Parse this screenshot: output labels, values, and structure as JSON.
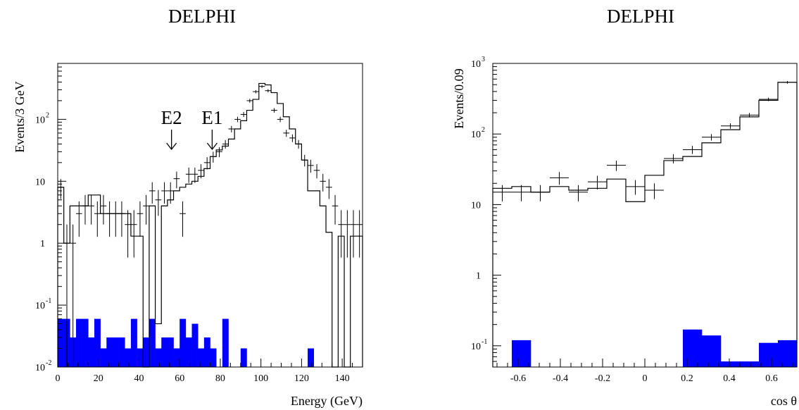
{
  "chart_data": [
    {
      "type": "histogram",
      "title": "DELPHI",
      "xlabel": "Energy (GeV)",
      "ylabel": "Events/3 GeV",
      "yscale": "log",
      "xlim": [
        0,
        150
      ],
      "ylim": [
        0.01,
        800
      ],
      "x_ticks": [
        "0",
        "20",
        "40",
        "60",
        "80",
        "100",
        "120",
        "140"
      ],
      "y_ticks": [
        {
          "value": 0.01,
          "label": "10",
          "exp": "-2"
        },
        {
          "value": 0.1,
          "label": "10",
          "exp": "-1"
        },
        {
          "value": 1,
          "label": "1",
          "exp": ""
        },
        {
          "value": 10,
          "label": "10",
          "exp": ""
        },
        {
          "value": 100,
          "label": "10",
          "exp": "2"
        }
      ],
      "bin_edges": [
        0,
        3,
        6,
        9,
        12,
        15,
        18,
        21,
        24,
        27,
        30,
        33,
        36,
        39,
        42,
        45,
        48,
        51,
        54,
        57,
        60,
        63,
        66,
        69,
        72,
        75,
        78,
        81,
        84,
        87,
        90,
        93,
        96,
        99,
        102,
        105,
        108,
        111,
        114,
        117,
        120,
        123,
        126,
        129,
        132,
        135,
        138,
        141,
        144,
        147,
        150
      ],
      "series": [
        {
          "role": "simulation-histogram",
          "values": [
            8,
            1,
            4,
            4,
            4,
            6,
            6,
            3,
            3,
            3,
            3,
            3,
            1.3,
            1.3,
            0.01,
            4,
            0.05,
            4,
            5,
            7,
            8,
            9,
            10,
            12,
            16,
            25,
            32,
            37,
            48,
            70,
            95,
            140,
            210,
            380,
            360,
            270,
            180,
            110,
            70,
            40,
            22,
            7,
            7,
            4,
            1.5,
            0.01,
            1.3,
            0.01,
            1.3,
            1.3
          ]
        },
        {
          "role": "data-points",
          "x": [
            1.5,
            4.5,
            7.5,
            10.5,
            13.5,
            16.5,
            19.5,
            22.5,
            25.5,
            28.5,
            31.5,
            34.5,
            37.5,
            40.5,
            43.5,
            46.5,
            49.5,
            52.5,
            55.5,
            58.5,
            61.5,
            64.5,
            67.5,
            70.5,
            73.5,
            76.5,
            79.5,
            82.5,
            85.5,
            88.5,
            91.5,
            94.5,
            97.5,
            100.5,
            103.5,
            106.5,
            109.5,
            112.5,
            115.5,
            118.5,
            121.5,
            124.5,
            127.5,
            130.5,
            133.5,
            136.5,
            139.5,
            142.5,
            145.5,
            148.5
          ],
          "y": [
            8,
            1,
            1,
            3,
            4,
            4,
            3,
            4,
            3,
            3,
            3,
            2,
            2,
            3,
            4,
            7,
            5,
            7,
            7,
            11,
            3,
            13,
            13,
            15,
            20,
            25,
            30,
            40,
            70,
            100,
            120,
            200,
            280,
            340,
            290,
            140,
            100,
            60,
            50,
            40,
            22,
            18,
            15,
            10,
            8,
            4,
            2,
            2,
            2,
            2
          ]
        },
        {
          "role": "background-histogram",
          "color": "#0000ff",
          "values": [
            0.06,
            0.06,
            0.03,
            0.06,
            0.06,
            0.03,
            0.06,
            0.02,
            0.03,
            0.03,
            0.03,
            0.02,
            0.06,
            0.02,
            0.03,
            0.06,
            0.02,
            0.03,
            0.03,
            0.02,
            0.06,
            0.03,
            0.05,
            0.02,
            0.03,
            0.02,
            0.01,
            0.06,
            0.01,
            0.01,
            0.02,
            0.01,
            0.01,
            0.01,
            0.01,
            0.01,
            0.01,
            0.01,
            0.01,
            0.01,
            0.01,
            0.02,
            0.01,
            0.01,
            0.01,
            0.01,
            0.01,
            0.01,
            0.01,
            0.01
          ]
        }
      ],
      "annotations": [
        {
          "text": "E2",
          "x": 56,
          "arrow": "down"
        },
        {
          "text": "E1",
          "x": 76,
          "arrow": "down"
        }
      ]
    },
    {
      "type": "histogram",
      "title": "DELPHI",
      "xlabel": "cos θ",
      "ylabel": "Events/0.09",
      "yscale": "log",
      "xlim": [
        -0.72,
        0.72
      ],
      "ylim": [
        0.05,
        1000
      ],
      "x_ticks": [
        "-0.6",
        "-0.4",
        "-0.2",
        "0",
        "0.2",
        "0.4",
        "0.6"
      ],
      "y_ticks": [
        {
          "value": 0.1,
          "label": "10",
          "exp": "-1"
        },
        {
          "value": 1,
          "label": "1",
          "exp": ""
        },
        {
          "value": 10,
          "label": "10",
          "exp": ""
        },
        {
          "value": 100,
          "label": "10",
          "exp": "2"
        },
        {
          "value": 1000,
          "label": "10",
          "exp": "3"
        }
      ],
      "bin_edges": [
        -0.72,
        -0.63,
        -0.54,
        -0.45,
        -0.36,
        -0.27,
        -0.18,
        -0.09,
        0.0,
        0.09,
        0.18,
        0.27,
        0.36,
        0.45,
        0.54,
        0.63,
        0.72
      ],
      "series": [
        {
          "role": "simulation-histogram",
          "values": [
            17,
            18,
            15,
            18,
            16,
            17,
            23,
            11,
            26,
            42,
            48,
            75,
            115,
            175,
            300,
            540
          ]
        },
        {
          "role": "data-points",
          "x": [
            -0.675,
            -0.585,
            -0.495,
            -0.405,
            -0.315,
            -0.225,
            -0.135,
            -0.045,
            0.045,
            0.135,
            0.225,
            0.315,
            0.405,
            0.495,
            0.585,
            0.675
          ],
          "y": [
            15,
            15,
            15,
            24,
            15,
            21,
            36,
            18,
            16,
            45,
            60,
            90,
            130,
            185,
            310,
            540
          ]
        },
        {
          "role": "background-histogram",
          "color": "#0000ff",
          "values": [
            0.05,
            0.12,
            0.05,
            0.05,
            0.05,
            0.05,
            0.05,
            0.05,
            0.05,
            0.05,
            0.17,
            0.14,
            0.06,
            0.06,
            0.11,
            0.12
          ]
        }
      ],
      "annotations": []
    }
  ]
}
